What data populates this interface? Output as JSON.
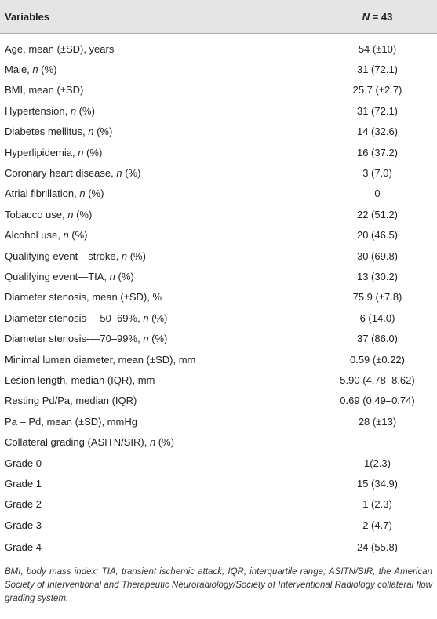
{
  "table": {
    "header": [
      "Variables",
      "N = 43"
    ],
    "rows": [
      [
        "Age, mean (±SD), years",
        "54 (±10)"
      ],
      [
        "Male, n (%)",
        "31 (72.1)"
      ],
      [
        "BMI, mean (±SD)",
        "25.7 (±2.7)"
      ],
      [
        "Hypertension, n (%)",
        "31 (72.1)"
      ],
      [
        "Diabetes mellitus, n (%)",
        "14 (32.6)"
      ],
      [
        "Hyperlipidemia, n (%)",
        "16 (37.2)"
      ],
      [
        "Coronary heart disease, n (%)",
        "3 (7.0)"
      ],
      [
        "Atrial fibrillation, n (%)",
        "0"
      ],
      [
        "Tobacco use, n (%)",
        "22 (51.2)"
      ],
      [
        "Alcohol use, n (%)",
        "20 (46.5)"
      ],
      [
        "Qualifying event—stroke, n (%)",
        "30 (69.8)"
      ],
      [
        "Qualifying event—TIA, n (%)",
        "13 (30.2)"
      ],
      [
        "Diameter stenosis, mean (±SD), %",
        "75.9 (±7.8)"
      ],
      [
        "Diameter stenosis-—50–69%, n (%)",
        "6 (14.0)"
      ],
      [
        "Diameter stenosis-—70–99%, n (%)",
        "37 (86.0)"
      ],
      [
        "Minimal lumen diameter, mean (±SD), mm",
        "0.59 (±0.22)"
      ],
      [
        "Lesion length, median (IQR), mm",
        "5.90 (4.78–8.62)"
      ],
      [
        "Resting Pd/Pa, median (IQR)",
        "0.69 (0.49–0.74)"
      ],
      [
        "Pa – Pd, mean (±SD), mmHg",
        "28 (±13)"
      ],
      [
        "Collateral grading (ASITN/SIR), n (%)",
        null
      ],
      [
        "Grade 0",
        "1(2.3)"
      ],
      [
        "Grade 1",
        "15 (34.9)"
      ],
      [
        "Grade 2",
        "1 (2.3)"
      ],
      [
        "Grade 3",
        "2 (4.7)"
      ],
      [
        "Grade 4",
        "24 (55.8)"
      ]
    ]
  },
  "footnote": "BMI, body mass index; TIA, transient ischemic attack; IQR, interquartile range; ASITN/SIR, the American Society of Interventional and Therapeutic Neuroradiology/Society of Interventional Radiology collateral flow grading system."
}
